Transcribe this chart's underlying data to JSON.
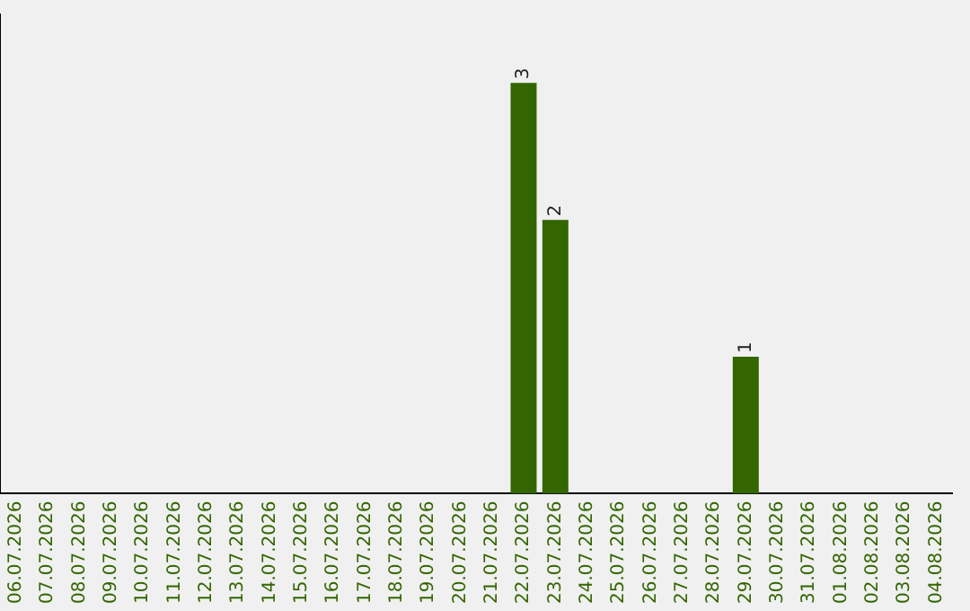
{
  "chart_data": {
    "type": "bar",
    "categories": [
      "06.07.2026",
      "07.07.2026",
      "08.07.2026",
      "09.07.2026",
      "10.07.2026",
      "11.07.2026",
      "12.07.2026",
      "13.07.2026",
      "14.07.2026",
      "15.07.2026",
      "16.07.2026",
      "17.07.2026",
      "18.07.2026",
      "19.07.2026",
      "20.07.2026",
      "21.07.2026",
      "22.07.2026",
      "23.07.2026",
      "24.07.2026",
      "25.07.2026",
      "26.07.2026",
      "27.07.2026",
      "28.07.2026",
      "29.07.2026",
      "30.07.2026",
      "31.07.2026",
      "01.08.2026",
      "02.08.2026",
      "03.08.2026",
      "04.08.2026"
    ],
    "values": [
      null,
      null,
      null,
      null,
      null,
      null,
      null,
      null,
      null,
      null,
      null,
      null,
      null,
      null,
      null,
      null,
      3,
      2,
      null,
      null,
      null,
      null,
      null,
      1,
      null,
      null,
      null,
      null,
      null,
      null
    ],
    "data_labels": true,
    "color": "#336600",
    "grid": false,
    "legend": false,
    "tick_labels": "x"
  }
}
